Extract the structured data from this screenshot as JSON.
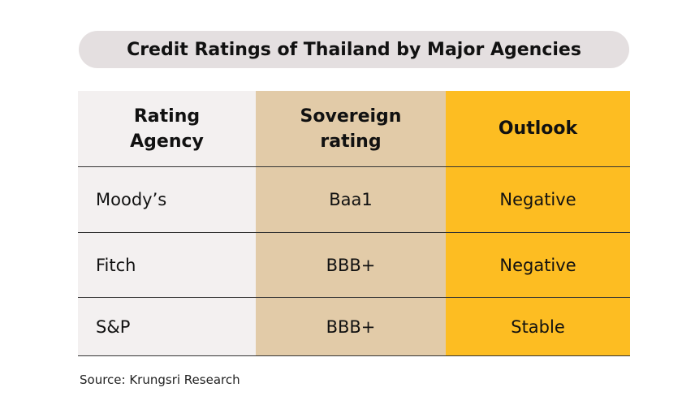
{
  "title": "Credit Ratings of Thailand by Major Agencies",
  "table": {
    "headers": [
      "Rating\nAgency",
      "Sovereign\nrating",
      "Outlook"
    ],
    "rows": [
      [
        "Moody’s",
        "Baa1",
        "Negative"
      ],
      [
        "Fitch",
        "BBB+",
        "Negative"
      ],
      [
        "S&P",
        "BBB+",
        "Stable"
      ]
    ]
  },
  "colors": {
    "col1": "#f3f0f0",
    "col2": "#e2cba8",
    "col3": "#fdbd22",
    "title_bg": "#e4dfe0"
  },
  "source": "Source: Krungsri Research"
}
